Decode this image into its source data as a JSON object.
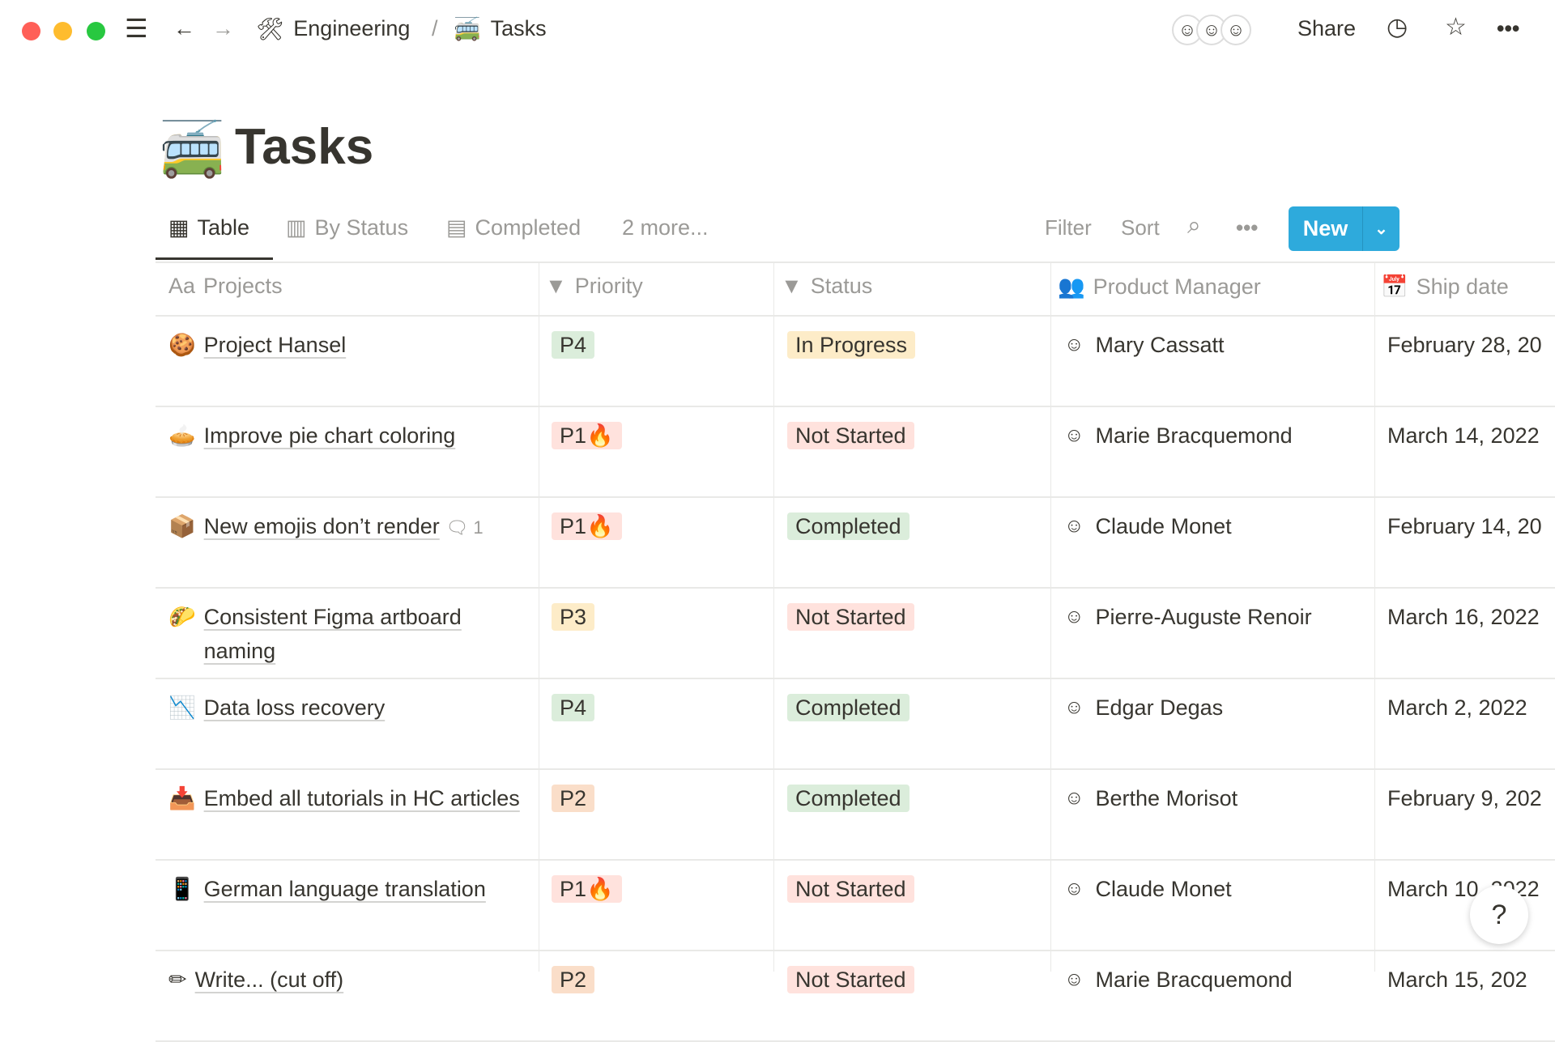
{
  "window": {
    "colors": {
      "close": "#ff5f57",
      "minimize": "#febc2e",
      "maximize": "#28c840"
    }
  },
  "topbar": {
    "breadcrumb": [
      {
        "icon": "🛠",
        "label": "Engineering"
      },
      {
        "icon": "🚎",
        "label": "Tasks"
      }
    ],
    "separator": "/",
    "share": "Share",
    "avatars": [
      "☺",
      "☺",
      "☺"
    ]
  },
  "page": {
    "icon": "🚎",
    "title": "Tasks"
  },
  "views": {
    "tabs": [
      {
        "label": "Table",
        "icon": "▦"
      },
      {
        "label": "By Status",
        "icon": "▥"
      },
      {
        "label": "Completed",
        "icon": "▤"
      }
    ],
    "more": "2 more...",
    "filter": "Filter",
    "sort": "Sort",
    "new": "New",
    "accent": "#2eaadc"
  },
  "table": {
    "columns": [
      {
        "icon": "Aa",
        "label": "Projects"
      },
      {
        "icon": "▼",
        "label": "Priority"
      },
      {
        "icon": "▼",
        "label": "Status"
      },
      {
        "icon": "👥",
        "label": "Product Manager"
      },
      {
        "icon": "📅",
        "label": "Ship date"
      }
    ],
    "rows": [
      {
        "icon": "🍪",
        "project": "Project Hansel",
        "priority": "P4",
        "status": "In Progress",
        "pm": "Mary Cassatt",
        "date": "February 28, 20"
      },
      {
        "icon": "🥧",
        "project": "Improve pie chart coloring",
        "priority": "P1🔥",
        "status": "Not Started",
        "pm": "Marie Bracquemond",
        "date": "March 14, 2022"
      },
      {
        "icon": "📦",
        "project": "New emojis don’t render",
        "comments": "1",
        "priority": "P1🔥",
        "status": "Completed",
        "pm": "Claude Monet",
        "date": "February 14, 20"
      },
      {
        "icon": "🌮",
        "project": "Consistent Figma artboard naming",
        "priority": "P3",
        "status": "Not Started",
        "pm": "Pierre-Auguste Renoir",
        "date": "March 16, 2022"
      },
      {
        "icon": "📉",
        "project": "Data loss recovery",
        "priority": "P4",
        "status": "Completed",
        "pm": "Edgar Degas",
        "date": "March 2, 2022"
      },
      {
        "icon": "📥",
        "project": "Embed all tutorials in HC articles",
        "priority": "P2",
        "status": "Completed",
        "pm": "Berthe Morisot",
        "date": "February 9, 202"
      },
      {
        "icon": "📱",
        "project": "German language translation",
        "priority": "P1🔥",
        "status": "Not Started",
        "pm": "Claude Monet",
        "date": "March 10, 2022"
      },
      {
        "icon": "✏",
        "project": "Write... (cut off)",
        "priority": "P2",
        "status": "Not Started",
        "pm": "Marie Bracquemond",
        "date": "March 15, 202"
      }
    ],
    "tag_colors": {
      "P1🔥": "#ffe2dd",
      "P2": "#fadec9",
      "P3": "#fdecc8",
      "P4": "#dbeddb",
      "In Progress": "#fdecc8",
      "Not Started": "#ffe2dd",
      "Completed": "#dbeddb"
    }
  },
  "help": "?"
}
